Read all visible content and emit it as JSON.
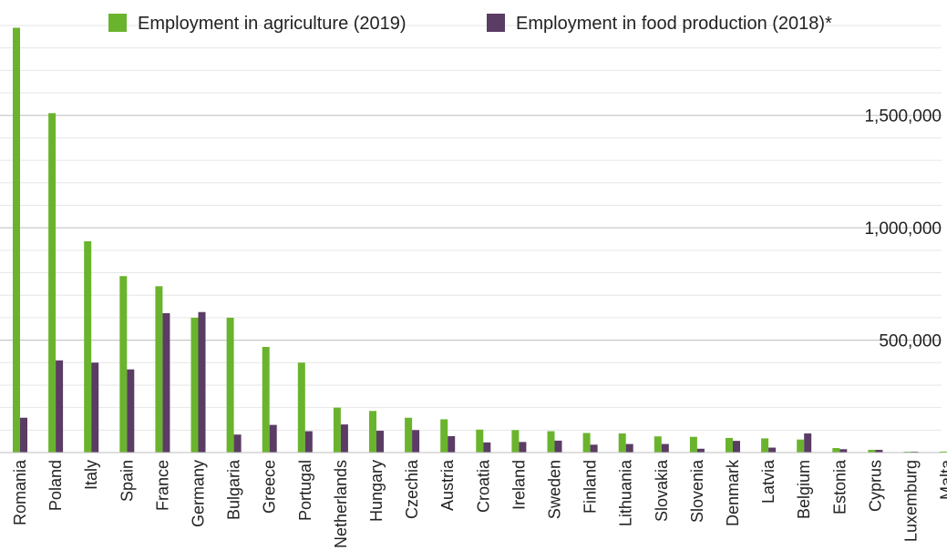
{
  "chart_data": {
    "type": "bar",
    "title": "",
    "xlabel": "",
    "ylabel": "",
    "ylim": [
      0,
      1900000
    ],
    "grid": true,
    "legend_position": "top",
    "y_ticks": [
      500000,
      1000000,
      1500000
    ],
    "y_tick_labels": [
      "500,000",
      "1,000,000",
      "1,500,000"
    ],
    "categories": [
      "Romania",
      "Poland",
      "Italy",
      "Spain",
      "France",
      "Germany",
      "Bulgaria",
      "Greece",
      "Portugal",
      "Netherlands",
      "Hungary",
      "Czechia",
      "Austria",
      "Croatia",
      "Ireland",
      "Sweden",
      "Finland",
      "Lithuania",
      "Slovakia",
      "Slovenia",
      "Denmark",
      "Latvia",
      "Belgium",
      "Estonia",
      "Cyprus",
      "Luxemburg",
      "Malta"
    ],
    "series": [
      {
        "name": "Employment in agriculture (2019)",
        "color": "#6ab42d",
        "values": [
          1890000,
          1510000,
          940000,
          785000,
          740000,
          600000,
          600000,
          470000,
          400000,
          200000,
          185000,
          155000,
          148000,
          102000,
          100000,
          95000,
          87000,
          85000,
          72000,
          70000,
          65000,
          63000,
          58000,
          20000,
          12000,
          4000,
          4000
        ]
      },
      {
        "name": "Employment in food production (2018)*",
        "color": "#5a3c64",
        "values": [
          155000,
          410000,
          400000,
          370000,
          620000,
          625000,
          80000,
          123000,
          95000,
          125000,
          97000,
          100000,
          73000,
          45000,
          47000,
          53000,
          35000,
          38000,
          38000,
          17000,
          52000,
          22000,
          85000,
          15000,
          12000,
          4000,
          2000
        ]
      }
    ]
  }
}
